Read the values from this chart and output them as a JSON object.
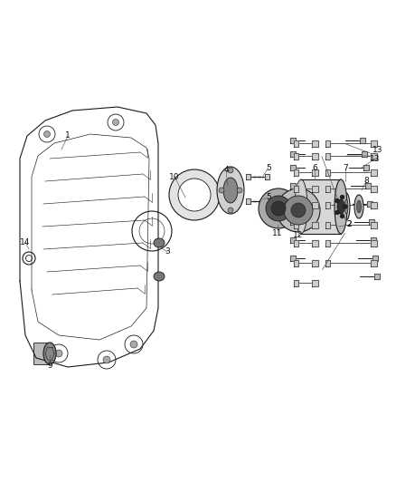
{
  "background_color": "#ffffff",
  "fig_width": 4.38,
  "fig_height": 5.33,
  "dpi": 100,
  "line_color": "#1a1a1a",
  "label_fontsize": 6.5,
  "gray_fill": "#d0d0d0",
  "dark_fill": "#444444",
  "mid_fill": "#888888",
  "light_fill": "#e8e8e8"
}
